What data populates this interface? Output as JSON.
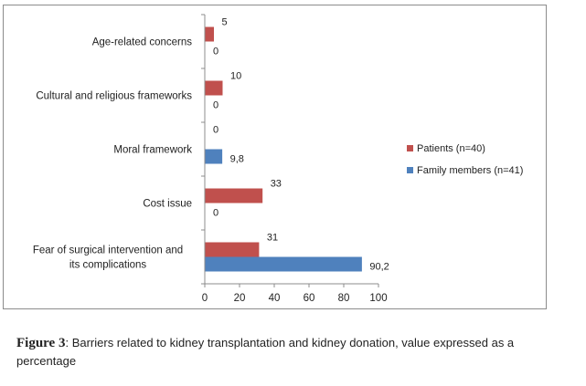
{
  "chart_data": {
    "type": "bar",
    "orientation": "horizontal",
    "categories": [
      "Age-related concerns",
      "Cultural and religious frameworks",
      "Moral framework",
      "Cost issue",
      "Fear of surgical intervention and its complications"
    ],
    "category_label_lines": [
      [
        "Age-related concerns"
      ],
      [
        "Cultural and religious frameworks"
      ],
      [
        "Moral framework"
      ],
      [
        "Cost issue"
      ],
      [
        "Fear of surgical intervention and",
        "its complications"
      ]
    ],
    "series": [
      {
        "name": "Patients (n=40)",
        "color": "#c0504d",
        "values": [
          5,
          10,
          0,
          33,
          31
        ],
        "labels": [
          "5",
          "10",
          "0",
          "33",
          "31"
        ]
      },
      {
        "name": "Family members (n=41)",
        "color": "#4f81bd",
        "values": [
          0,
          0,
          9.8,
          0,
          90.2
        ],
        "labels": [
          "0",
          "0",
          "9,8",
          "0",
          "90,2"
        ]
      }
    ],
    "xlim": [
      0,
      100
    ],
    "xticks": [
      0,
      20,
      40,
      60,
      80,
      100
    ],
    "grid": false,
    "legend_position": "right"
  },
  "caption": {
    "label": "Figure 3",
    "text": ": Barriers related to kidney transplantation and kidney donation, value expressed as a percentage"
  }
}
